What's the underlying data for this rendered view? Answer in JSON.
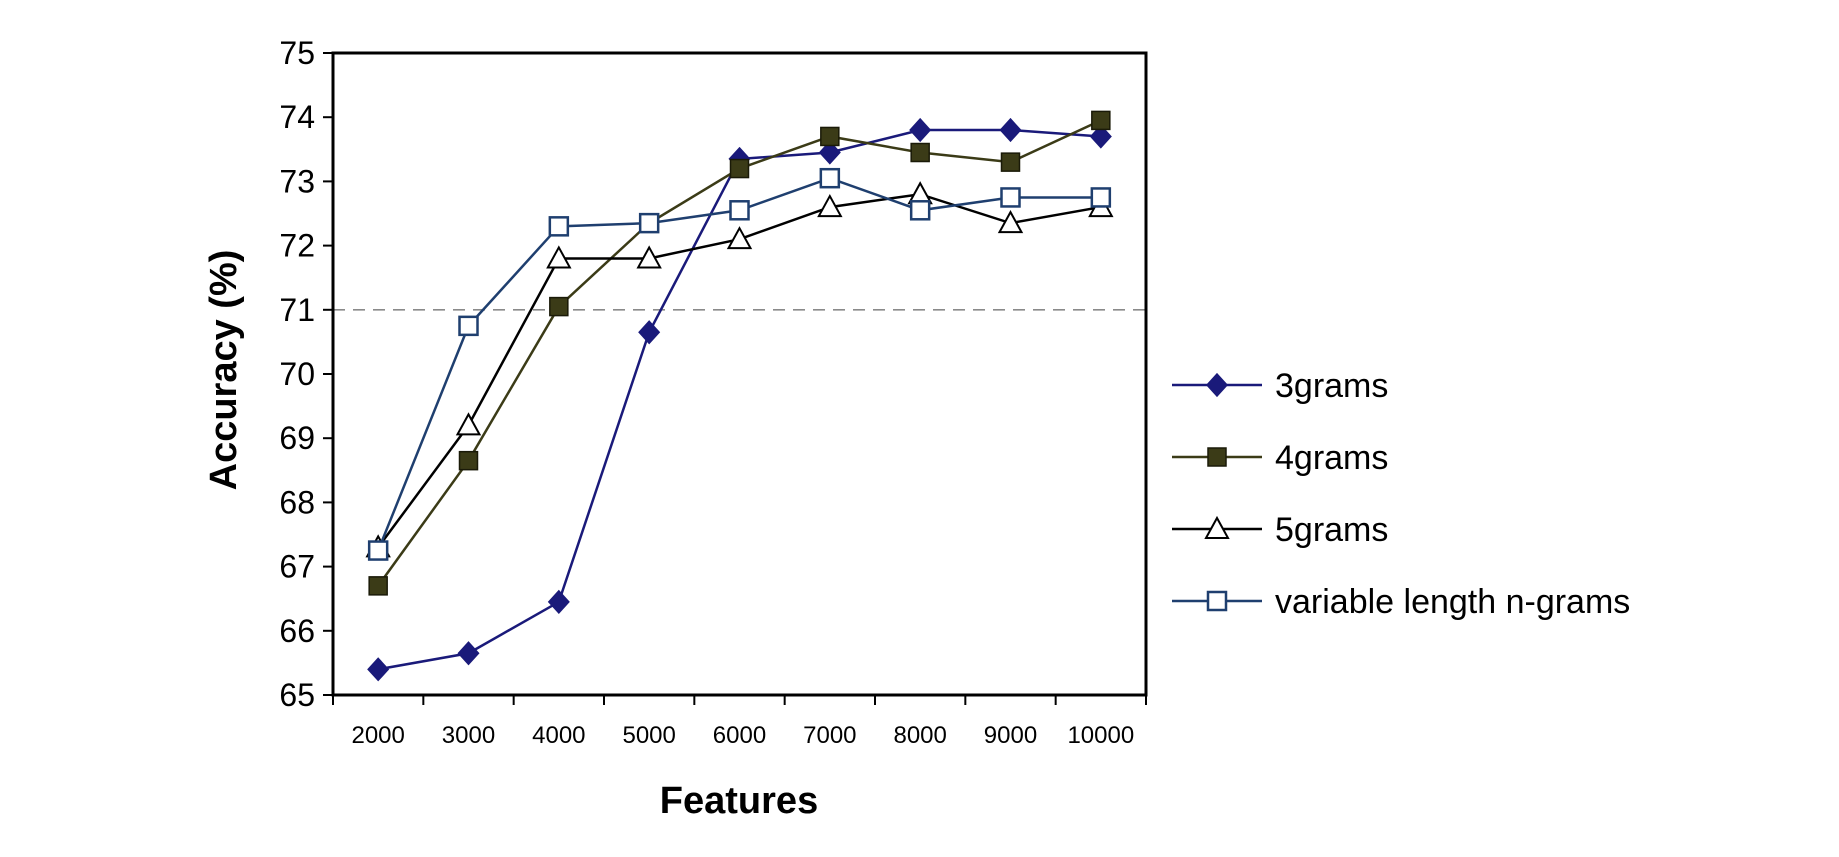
{
  "chart_data": {
    "type": "line",
    "title": "",
    "xlabel": "Features",
    "ylabel": "Accuracy (%)",
    "categories": [
      "2000",
      "3000",
      "4000",
      "5000",
      "6000",
      "7000",
      "8000",
      "9000",
      "10000"
    ],
    "ylim": [
      65,
      75
    ],
    "yticks": [
      "65",
      "66",
      "67",
      "68",
      "69",
      "70",
      "71",
      "72",
      "73",
      "74",
      "75"
    ],
    "reference_line": 71,
    "legend_position": "right",
    "series": [
      {
        "name": "3grams",
        "marker": "diamond",
        "color": "#1a1a7a",
        "values": [
          65.4,
          65.65,
          66.45,
          70.65,
          73.35,
          73.45,
          73.8,
          73.8,
          73.7
        ]
      },
      {
        "name": "4grams",
        "marker": "square-filled",
        "color": "#3b3b17",
        "values": [
          66.7,
          68.65,
          71.05,
          72.35,
          73.2,
          73.7,
          73.45,
          73.3,
          73.95
        ]
      },
      {
        "name": "5grams",
        "marker": "triangle-open",
        "color": "#000000",
        "values": [
          67.3,
          69.2,
          71.8,
          71.8,
          72.1,
          72.6,
          72.8,
          72.35,
          72.6
        ]
      },
      {
        "name": "variable length n-grams",
        "marker": "square-open",
        "color": "#1f3f6f",
        "values": [
          67.25,
          70.75,
          72.3,
          72.35,
          72.55,
          73.05,
          72.55,
          72.75,
          72.75
        ]
      }
    ]
  }
}
